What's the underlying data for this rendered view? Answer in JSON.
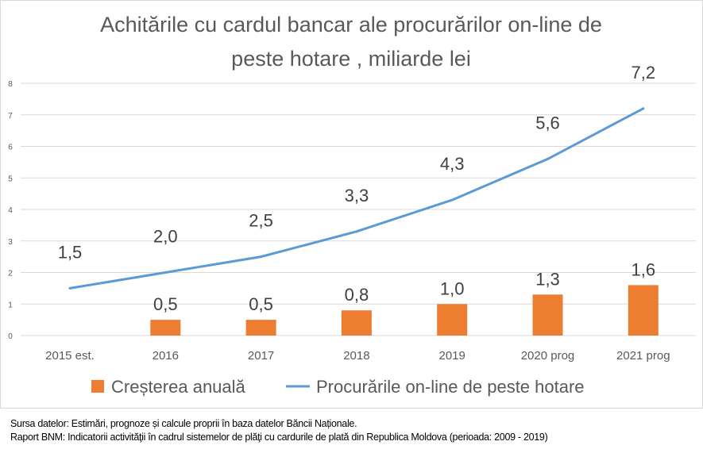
{
  "chart_data": {
    "type": "bar+line",
    "title_lines": [
      "Achitările cu cardul bancar ale procurărilor on-line de",
      "peste hotare , miliarde lei"
    ],
    "categories": [
      "2015 est.",
      "2016",
      "2017",
      "2018",
      "2019",
      "2020 prog",
      "2021 prog"
    ],
    "series": [
      {
        "name": "Creșterea anuală",
        "kind": "bar",
        "color": "#ed7d31",
        "values": [
          null,
          0.5,
          0.5,
          0.8,
          1.0,
          1.3,
          1.6
        ],
        "labels": [
          "",
          "0,5",
          "0,5",
          "0,8",
          "1,0",
          "1,3",
          "1,6"
        ]
      },
      {
        "name": "Procurările on-line de peste hotare",
        "kind": "line",
        "color": "#5b9bd5",
        "values": [
          1.5,
          2.0,
          2.5,
          3.3,
          4.3,
          5.6,
          7.2
        ],
        "labels": [
          "1,5",
          "2,0",
          "2,5",
          "3,3",
          "4,3",
          "5,6",
          "7,2"
        ]
      }
    ],
    "ylim": [
      0,
      8
    ],
    "yticks": [
      "0",
      "1",
      "2",
      "3",
      "4",
      "5",
      "6",
      "7",
      "8"
    ],
    "grid": true,
    "legend_position": "bottom"
  },
  "source": {
    "line1": "Sursa datelor: Estimări, prognoze și calcule proprii în baza datelor Băncii Naționale.",
    "line2": "Raport BNM: Indicatorii activităţii în cadrul sistemelor de plăţi cu cardurile de plată din Republica Moldova (perioada: 2009 - 2019)"
  }
}
